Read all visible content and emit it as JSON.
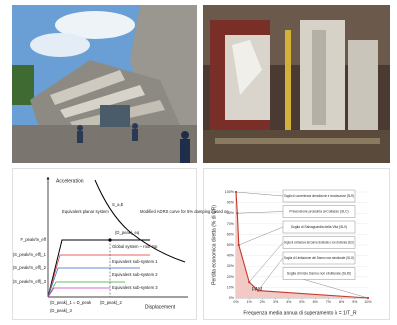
{
  "diagram": {
    "y_axis": "Acceleration",
    "x_axis": "Displacement",
    "demand_label": "S_a,E",
    "demand_curve": "Modified ADRS curve for 5% damping based on",
    "planar": "Equivalent planar system",
    "global": "Global system – roof top",
    "sub1": "Equivalent sub-system 1",
    "sub2": "Equivalent sub-system 2",
    "sub3": "Equivalent sub-system 3",
    "peak": "(D_peak)_eq",
    "y_labels": [
      "F_peak/m_eff",
      "(S_peak/m_eff)_1",
      "(S_peak/m_eff)_2",
      "(S_peak/m_eff)_3"
    ],
    "x_labels": [
      "(D_peak)_1 = D_peak",
      "(D_peak)_2",
      "(D_peak)_3"
    ]
  },
  "chart_data": {
    "type": "line",
    "x_label": "Frequenza media annua di superamento λ = 1/T_R",
    "y_label": "Perdita economica diretta (% di CR)",
    "x": [
      0,
      0.1,
      0.21,
      1,
      1.67,
      10
    ],
    "series": [
      {
        "name": "PAM",
        "color": "#c0392b",
        "values": [
          100,
          80,
          50,
          15,
          7,
          0
        ]
      }
    ],
    "point_labels": [
      "Soglia di convenienza demolizione e ricostruzione (SLR)",
      "Prevenzione prossima al Collasso (SLC)",
      "Soglia di Salvaguardia della Vita (SLV)",
      "Soglia di Limitazione del Danno strutturale e non strutturale (SLD)",
      "Soglia di Limitazione del Danno non strutturale (SLO)",
      "Soglia di Inizio Danno non strutturale (SLID)"
    ],
    "xlim": [
      0,
      10
    ],
    "ylim": [
      0,
      100
    ],
    "xticks": [
      {
        "value": 0,
        "label": "0%"
      },
      {
        "value": 1,
        "label": "1%"
      },
      {
        "value": 2,
        "label": "2%"
      },
      {
        "value": 3,
        "label": "3%"
      },
      {
        "value": 4,
        "label": "4%"
      },
      {
        "value": 5,
        "label": "5%"
      },
      {
        "value": 6,
        "label": "6%"
      },
      {
        "value": 7,
        "label": "7%"
      },
      {
        "value": 8,
        "label": "8%"
      },
      {
        "value": 9,
        "label": "9%"
      },
      {
        "value": 10,
        "label": "10%"
      }
    ],
    "yticks": [
      {
        "value": 0,
        "label": "0%"
      },
      {
        "value": 10,
        "label": "10%"
      },
      {
        "value": 20,
        "label": "20%"
      },
      {
        "value": 30,
        "label": "30%"
      },
      {
        "value": 40,
        "label": "40%"
      },
      {
        "value": 50,
        "label": "50%"
      },
      {
        "value": 60,
        "label": "60%"
      },
      {
        "value": 70,
        "label": "70%"
      },
      {
        "value": 80,
        "label": "80%"
      },
      {
        "value": 90,
        "label": "90%"
      },
      {
        "value": 100,
        "label": "100%"
      }
    ]
  }
}
